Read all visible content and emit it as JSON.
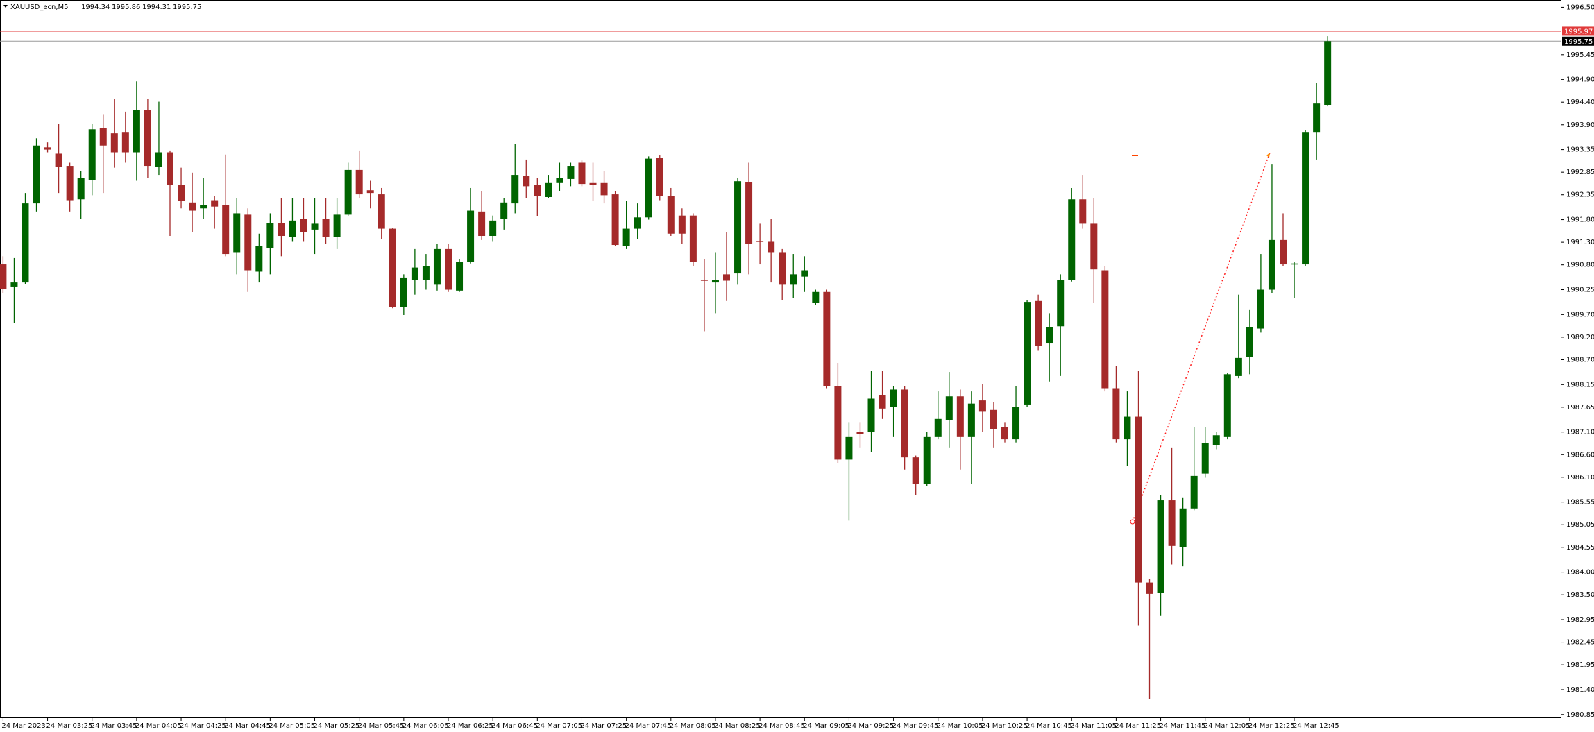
{
  "chart_data": {
    "type": "candlestick",
    "symbol": "XAUUSD_ecn,M5",
    "up_color": "#006400",
    "down_color": "#a52a2a",
    "categories": [
      "24 Mar 2023",
      null,
      null,
      null,
      "24 Mar 03:25",
      null,
      null,
      null,
      "24 Mar 03:45",
      null,
      null,
      null,
      "24 Mar 04:05",
      null,
      null,
      null,
      "24 Mar 04:25",
      null,
      null,
      null,
      "24 Mar 04:45",
      null,
      null,
      null,
      "24 Mar 05:05",
      null,
      null,
      null,
      "24 Mar 05:25",
      null,
      null,
      null,
      "24 Mar 05:45",
      null,
      null,
      null,
      "24 Mar 06:05",
      null,
      null,
      null,
      "24 Mar 06:25",
      null,
      null,
      null,
      "24 Mar 06:45",
      null,
      null,
      null,
      "24 Mar 07:05",
      null,
      null,
      null,
      "24 Mar 07:25",
      null,
      null,
      null,
      "24 Mar 07:45",
      null,
      null,
      null,
      "24 Mar 08:05",
      null,
      null,
      null,
      "24 Mar 08:25",
      null,
      null,
      null,
      "24 Mar 08:45",
      null,
      null,
      null,
      "24 Mar 09:05",
      null,
      null,
      null,
      "24 Mar 09:25",
      null,
      null,
      null,
      "24 Mar 09:45",
      null,
      null,
      null,
      "24 Mar 10:05",
      null,
      null,
      null,
      "24 Mar 10:25",
      null,
      null,
      null,
      "24 Mar 10:45",
      null,
      null,
      null,
      "24 Mar 11:05",
      null,
      null,
      null,
      "24 Mar 11:25",
      null,
      null,
      null,
      "24 Mar 11:45",
      null,
      null,
      null,
      "24 Mar 12:05",
      null,
      null,
      null,
      "24 Mar 12:25",
      null,
      null,
      null,
      "24 Mar 12:45",
      null,
      null,
      null
    ],
    "open": [
      1990.81,
      1990.32,
      1990.41,
      1992.16,
      1993.4,
      1993.26,
      1992.99,
      1992.25,
      1992.68,
      1993.83,
      1993.71,
      1993.74,
      1993.29,
      1994.23,
      1992.97,
      1993.29,
      1992.57,
      1992.18,
      1992.05,
      1992.23,
      1992.12,
      1991.08,
      1991.91,
      1990.65,
      1991.17,
      1991.73,
      1991.42,
      1991.82,
      1991.58,
      1991.82,
      1991.42,
      1991.91,
      1992.9,
      1992.45,
      1992.36,
      1991.6,
      1989.87,
      1990.47,
      1990.47,
      1990.36,
      1991.15,
      1990.23,
      1990.86,
      1991.98,
      1991.44,
      1991.82,
      1992.16,
      1992.77,
      1992.57,
      1992.3,
      1992.61,
      1992.7,
      1993.06,
      1992.61,
      1992.61,
      1992.36,
      1991.22,
      1991.6,
      1991.85,
      1993.17,
      1992.32,
      1991.89,
      1991.89,
      1990.47,
      1990.41,
      1990.59,
      1990.61,
      1992.63,
      1991.33,
      1991.31,
      1991.08,
      1990.36,
      1990.54,
      1989.96,
      1990.2,
      1988.11,
      1986.49,
      1987.1,
      1987.1,
      1987.91,
      1987.66,
      1988.04,
      1986.54,
      1985.95,
      1986.99,
      1987.37,
      1987.89,
      1986.99,
      1987.8,
      1987.59,
      1987.21,
      1986.94,
      1987.71,
      1990.0,
      1989.06,
      1989.44,
      1990.47,
      1992.25,
      1991.71,
      1990.68,
      1988.07,
      1986.94,
      1987.44,
      1983.77,
      1983.54,
      1985.59,
      1984.56,
      1985.41,
      1986.18,
      1986.81,
      1986.99,
      1988.34,
      1988.76,
      1989.39,
      1990.25,
      1991.35,
      1990.81,
      1990.81,
      1993.74,
      1994.34
    ],
    "high": [
      1990.99,
      1990.95,
      1992.39,
      1993.6,
      1993.51,
      1993.92,
      1993.06,
      1992.88,
      1993.92,
      1994.12,
      1994.48,
      1994.19,
      1994.86,
      1994.48,
      1994.41,
      1993.33,
      1992.95,
      1992.84,
      1992.72,
      1992.32,
      1993.24,
      1992.27,
      1992.05,
      1991.49,
      1991.94,
      1992.27,
      1992.27,
      1992.27,
      1992.27,
      1992.27,
      1992.27,
      1993.06,
      1993.33,
      1992.66,
      1992.5,
      1991.62,
      1990.59,
      1991.15,
      1991.04,
      1991.26,
      1991.26,
      1990.92,
      1992.5,
      1992.43,
      1991.89,
      1992.27,
      1993.47,
      1993.13,
      1992.72,
      1992.79,
      1993.06,
      1993.06,
      1993.11,
      1993.06,
      1992.88,
      1992.43,
      1992.21,
      1992.16,
      1993.2,
      1993.22,
      1992.5,
      1992.05,
      1991.94,
      1990.92,
      1991.08,
      1991.53,
      1992.72,
      1993.06,
      1991.71,
      1991.82,
      1991.15,
      1991.04,
      1990.99,
      1990.25,
      1990.25,
      1988.63,
      1987.32,
      1987.32,
      1988.45,
      1988.45,
      1988.11,
      1988.11,
      1986.58,
      1987.1,
      1988.0,
      1988.43,
      1988.04,
      1988.0,
      1988.16,
      1987.77,
      1987.32,
      1988.11,
      1990.02,
      1990.14,
      1989.73,
      1990.59,
      1992.5,
      1992.79,
      1992.27,
      1990.77,
      1988.56,
      1988.0,
      1988.45,
      1983.84,
      1985.7,
      1986.76,
      1985.64,
      1987.21,
      1987.21,
      1987.1,
      1988.4,
      1990.14,
      1989.8,
      1991.04,
      1993.02,
      1991.94,
      1990.86,
      1993.78,
      1994.82,
      1995.86
    ],
    "low": [
      1990.18,
      1989.51,
      1990.38,
      1991.98,
      1993.29,
      1992.39,
      1991.98,
      1991.82,
      1992.34,
      1992.39,
      1992.95,
      1993.06,
      1992.66,
      1992.72,
      1992.79,
      1991.44,
      1992.05,
      1991.53,
      1991.82,
      1991.6,
      1990.99,
      1990.59,
      1990.2,
      1990.41,
      1990.59,
      1990.99,
      1991.31,
      1991.31,
      1991.04,
      1991.26,
      1991.15,
      1991.87,
      1992.27,
      1992.05,
      1991.37,
      1989.84,
      1989.69,
      1990.14,
      1990.25,
      1990.23,
      1990.2,
      1990.2,
      1990.83,
      1991.35,
      1991.31,
      1991.58,
      1991.94,
      1992.27,
      1991.87,
      1992.27,
      1992.43,
      1992.54,
      1992.54,
      1992.21,
      1992.16,
      1991.22,
      1991.15,
      1991.37,
      1991.8,
      1992.23,
      1991.44,
      1991.26,
      1990.77,
      1989.33,
      1989.73,
      1990.0,
      1990.36,
      1990.59,
      1990.81,
      1990.41,
      1990.02,
      1990.07,
      1990.2,
      1989.91,
      1988.07,
      1986.42,
      1985.14,
      1986.76,
      1986.65,
      1987.39,
      1986.99,
      1986.27,
      1985.7,
      1985.91,
      1986.94,
      1986.76,
      1986.27,
      1985.95,
      1987.1,
      1986.76,
      1986.87,
      1986.87,
      1987.66,
      1988.9,
      1988.22,
      1988.34,
      1990.43,
      1991.6,
      1989.96,
      1988.0,
      1986.87,
      1986.35,
      1982.82,
      1981.2,
      1983.03,
      1984.17,
      1984.13,
      1985.37,
      1986.09,
      1986.72,
      1986.94,
      1988.29,
      1988.38,
      1989.3,
      1990.18,
      1990.77,
      1990.07,
      1990.77,
      1993.13,
      1994.31
    ],
    "close": [
      1990.27,
      1990.41,
      1992.16,
      1993.44,
      1993.35,
      1992.97,
      1992.23,
      1992.72,
      1993.8,
      1993.44,
      1993.29,
      1993.29,
      1994.23,
      1992.99,
      1993.29,
      1992.57,
      1992.21,
      1992.0,
      1992.12,
      1992.09,
      1991.04,
      1991.94,
      1990.68,
      1991.22,
      1991.73,
      1991.44,
      1991.78,
      1991.53,
      1991.71,
      1991.42,
      1991.91,
      1992.9,
      1992.36,
      1992.39,
      1991.6,
      1989.87,
      1990.52,
      1990.74,
      1990.77,
      1991.15,
      1990.25,
      1990.86,
      1992.0,
      1991.44,
      1991.78,
      1992.18,
      1992.79,
      1992.54,
      1992.32,
      1992.61,
      1992.72,
      1992.99,
      1992.59,
      1992.57,
      1992.34,
      1991.24,
      1991.6,
      1991.85,
      1993.15,
      1992.32,
      1991.49,
      1991.49,
      1990.86,
      1990.45,
      1990.47,
      1990.45,
      1992.65,
      1991.26,
      1991.31,
      1991.08,
      1990.36,
      1990.59,
      1990.68,
      1990.2,
      1988.11,
      1986.49,
      1986.99,
      1987.05,
      1987.84,
      1987.62,
      1988.04,
      1986.54,
      1985.95,
      1986.99,
      1987.39,
      1987.89,
      1986.99,
      1987.73,
      1987.55,
      1987.17,
      1986.94,
      1987.66,
      1989.98,
      1989.01,
      1989.42,
      1990.47,
      1992.25,
      1991.71,
      1990.7,
      1988.07,
      1986.94,
      1987.44,
      1983.77,
      1983.52,
      1985.59,
      1984.58,
      1985.41,
      1986.13,
      1986.85,
      1987.03,
      1988.38,
      1988.74,
      1989.42,
      1990.25,
      1991.35,
      1990.81,
      1990.83,
      1993.74,
      1994.37,
      1995.75
    ],
    "ylim": [
      1980.77,
      1996.66
    ],
    "yticks": [
      {
        "value": 1996.5,
        "label": "1996.50"
      },
      1995.45,
      {
        "value": 1994.9,
        "label": "1994.90"
      },
      {
        "value": 1994.4,
        "label": "1994.40"
      },
      {
        "value": 1993.9,
        "label": "1993.90"
      },
      1993.35,
      1992.85,
      1992.35,
      {
        "value": 1991.8,
        "label": "1991.80"
      },
      {
        "value": 1991.3,
        "label": "1991.30"
      },
      {
        "value": 1990.8,
        "label": "1990.80"
      },
      1990.25,
      {
        "value": 1989.7,
        "label": "1989.70"
      },
      {
        "value": 1989.2,
        "label": "1989.20"
      },
      {
        "value": 1988.7,
        "label": "1988.70"
      },
      1988.15,
      1987.65,
      {
        "value": 1987.1,
        "label": "1987.10"
      },
      {
        "value": 1986.6,
        "label": "1986.60"
      },
      {
        "value": 1986.1,
        "label": "1986.10"
      },
      1985.55,
      1985.05,
      1984.55,
      {
        "value": 1984,
        "label": "1984.00"
      },
      {
        "value": 1983.5,
        "label": "1983.50"
      },
      1982.95,
      1982.45,
      1981.95,
      {
        "value": 1981.4,
        "label": "1981.40"
      },
      1980.85
    ],
    "price_lines": [
      {
        "value": 1995.97,
        "color": "#e03a3a",
        "label_color": "#e03a3a"
      },
      {
        "value": 1995.75,
        "color": "#9a9a9a",
        "label_color": "#000000"
      }
    ]
  }
}
